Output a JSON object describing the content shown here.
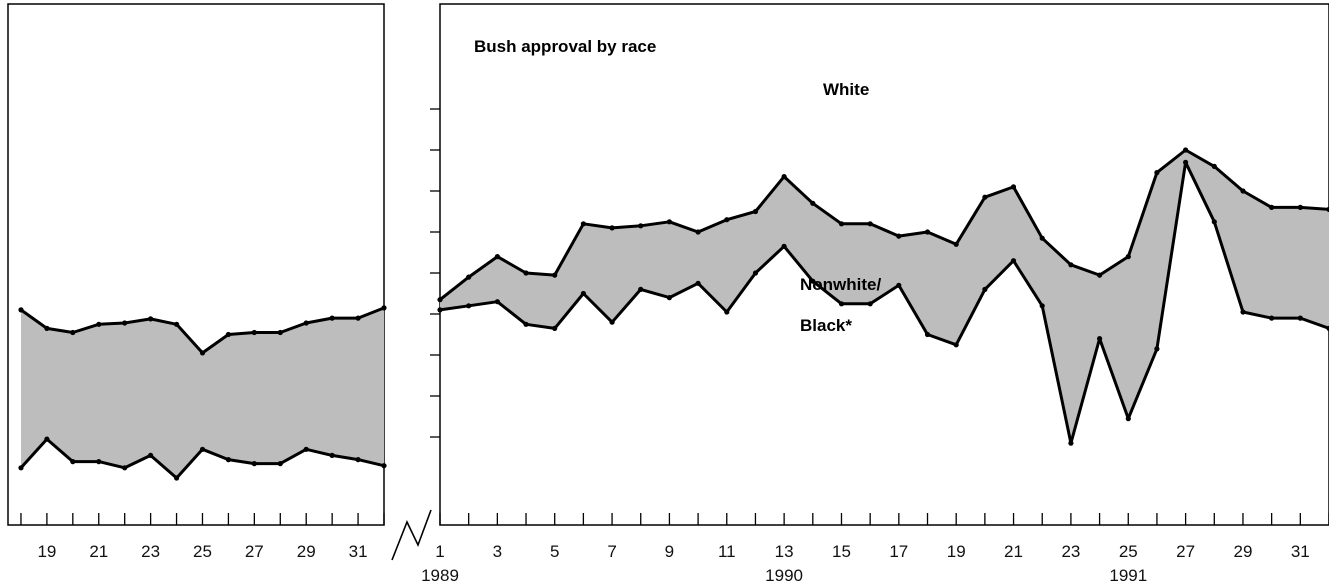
{
  "chart_data": {
    "type": "area",
    "title": "Bush approval by race",
    "xlabel": "",
    "ylabel": "",
    "grid": false,
    "legend": "none",
    "ylim": [
      0,
      10
    ],
    "band_color": "#bdbdbd",
    "line_color": "#000000",
    "panels": [
      {
        "name": "left",
        "x": [
          18,
          19,
          20,
          21,
          22,
          23,
          24,
          25,
          26,
          27,
          28,
          29,
          30,
          31,
          32
        ],
        "xlim": [
          17.5,
          32
        ],
        "tick_labels": [
          "19",
          "21",
          "23",
          "25",
          "27",
          "29",
          "31"
        ],
        "series": [
          {
            "values": [
              4.1,
              3.65,
              3.55,
              3.75,
              3.78,
              3.88,
              3.75,
              3.05,
              3.5,
              3.55,
              3.55,
              3.78,
              3.9,
              3.9,
              4.15
            ]
          },
          {
            "values": [
              0.25,
              0.95,
              0.4,
              0.4,
              0.25,
              0.55,
              0.0,
              0.7,
              0.45,
              0.35,
              0.35,
              0.7,
              0.55,
              0.45,
              0.3
            ]
          }
        ]
      },
      {
        "name": "right",
        "x": [
          1,
          2,
          3,
          4,
          5,
          6,
          7,
          8,
          9,
          10,
          11,
          12,
          13,
          14,
          15,
          16,
          17,
          18,
          19,
          20,
          21,
          22,
          23,
          24,
          25,
          26,
          27,
          28,
          29,
          30,
          31,
          32
        ],
        "xlim": [
          1,
          32
        ],
        "tick_labels": [
          "1",
          "3",
          "5",
          "7",
          "9",
          "11",
          "13",
          "15",
          "17",
          "19",
          "21",
          "23",
          "25",
          "27",
          "29",
          "31"
        ],
        "year_labels": [
          {
            "x": 1,
            "label": "1989"
          },
          {
            "x": 13,
            "label": "1990"
          },
          {
            "x": 25,
            "label": "1991"
          }
        ],
        "series": [
          {
            "name": "White",
            "values": [
              4.35,
              4.9,
              5.4,
              5.0,
              4.95,
              6.2,
              6.1,
              6.15,
              6.25,
              6.0,
              6.3,
              6.5,
              7.35,
              6.7,
              6.2,
              6.2,
              5.9,
              6.0,
              5.7,
              6.85,
              7.1,
              5.85,
              5.2,
              4.95,
              5.4,
              7.45,
              8.0,
              7.6,
              7.0,
              6.6,
              6.6,
              6.55
            ]
          },
          {
            "name": "Nonwhite/ Black*",
            "values": [
              4.1,
              4.2,
              4.3,
              3.75,
              3.65,
              4.5,
              3.8,
              4.6,
              4.4,
              4.75,
              4.05,
              5.0,
              5.65,
              4.8,
              4.25,
              4.25,
              4.7,
              3.5,
              3.25,
              4.6,
              5.3,
              4.2,
              0.85,
              3.4,
              1.45,
              3.15,
              7.7,
              6.25,
              4.05,
              3.9,
              3.9,
              3.65
            ]
          }
        ]
      }
    ]
  }
}
